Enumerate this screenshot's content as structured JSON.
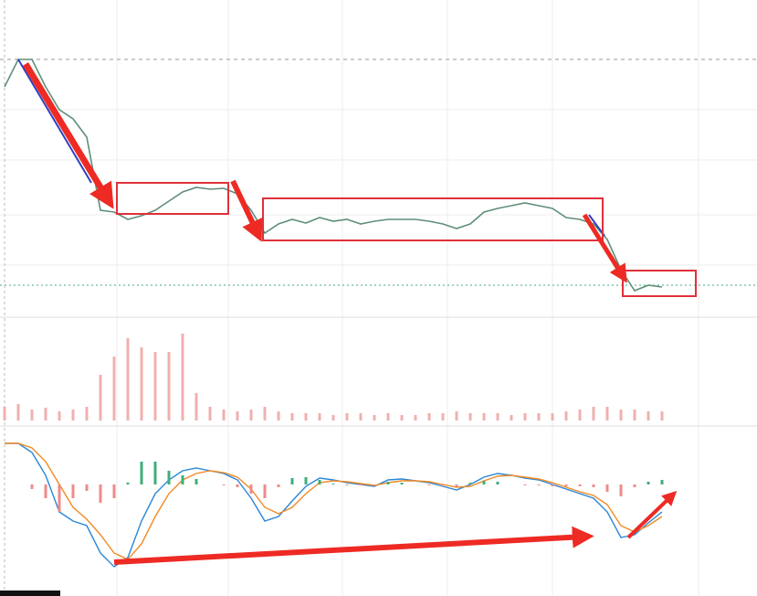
{
  "chart_data": [
    {
      "type": "line",
      "color": "#5f8f78",
      "ylim": [
        0,
        300
      ],
      "categories": [
        null,
        null,
        null,
        null,
        null,
        null,
        null,
        null,
        null,
        null,
        null,
        null,
        null,
        null,
        null,
        null,
        null,
        null,
        null,
        null,
        null,
        null,
        null,
        null,
        null,
        null,
        null,
        null,
        null,
        null,
        null,
        null,
        null,
        null,
        null,
        null,
        null,
        null,
        null,
        null,
        null,
        null,
        null,
        null,
        null,
        null,
        null,
        null,
        null
      ],
      "values": [
        250,
        280,
        280,
        250,
        225,
        215,
        195,
        115,
        113,
        105,
        109,
        115,
        125,
        135,
        140,
        138,
        139,
        133,
        115,
        90,
        100,
        105,
        101,
        107,
        103,
        105,
        100,
        103,
        105,
        105,
        105,
        103,
        100,
        95,
        100,
        113,
        117,
        120,
        123,
        120,
        117,
        107,
        105,
        100,
        83,
        50,
        27,
        33,
        31
      ]
    },
    {
      "type": "bar",
      "color": "#f0b0b0",
      "ylim": [
        0,
        110
      ],
      "categories": [
        null,
        null,
        null,
        null,
        null,
        null,
        null,
        null,
        null,
        null,
        null,
        null,
        null,
        null,
        null,
        null,
        null,
        null,
        null,
        null,
        null,
        null,
        null,
        null,
        null,
        null,
        null,
        null,
        null,
        null,
        null,
        null,
        null,
        null,
        null,
        null,
        null,
        null,
        null,
        null,
        null,
        null,
        null,
        null,
        null,
        null,
        null,
        null,
        null
      ],
      "values": [
        15,
        18,
        12,
        14,
        10,
        12,
        15,
        50,
        70,
        90,
        80,
        75,
        75,
        95,
        30,
        15,
        12,
        10,
        12,
        15,
        10,
        8,
        8,
        8,
        6,
        8,
        8,
        6,
        8,
        6,
        6,
        8,
        8,
        10,
        8,
        8,
        8,
        6,
        8,
        8,
        8,
        10,
        12,
        15,
        15,
        12,
        12,
        10,
        10
      ]
    },
    {
      "type": "line",
      "ylim": [
        -110,
        60
      ],
      "categories": [
        null,
        null,
        null,
        null,
        null,
        null,
        null,
        null,
        null,
        null,
        null,
        null,
        null,
        null,
        null,
        null,
        null,
        null,
        null,
        null,
        null,
        null,
        null,
        null,
        null,
        null,
        null,
        null,
        null,
        null,
        null,
        null,
        null,
        null,
        null,
        null,
        null,
        null,
        null,
        null,
        null,
        null,
        null,
        null,
        null,
        null,
        null,
        null,
        null
      ],
      "series": [
        {
          "color": "#2a86d6",
          "values": [
            45,
            45,
            35,
            10,
            -30,
            -40,
            -45,
            -75,
            -90,
            -80,
            -40,
            -10,
            5,
            15,
            18,
            15,
            12,
            5,
            -15,
            -40,
            -35,
            -18,
            -2,
            7,
            5,
            2,
            0,
            -2,
            5,
            6,
            4,
            2,
            -2,
            -6,
            0,
            8,
            12,
            10,
            7,
            5,
            0,
            -5,
            -10,
            -15,
            -30,
            -58,
            -55,
            -42,
            -30
          ]
        },
        {
          "color": "#f08a24",
          "values": [
            45,
            45,
            40,
            25,
            0,
            -25,
            -38,
            -55,
            -75,
            -82,
            -65,
            -35,
            -10,
            5,
            12,
            15,
            13,
            8,
            -5,
            -25,
            -32,
            -25,
            -10,
            2,
            4,
            3,
            1,
            -1,
            2,
            4,
            4,
            3,
            0,
            -3,
            -2,
            4,
            9,
            10,
            8,
            6,
            2,
            -3,
            -8,
            -12,
            -22,
            -45,
            -52,
            -45,
            -35
          ]
        }
      ]
    },
    {
      "type": "bar",
      "ylim": [
        -110,
        60
      ],
      "up_color": "#3fae7a",
      "down_color": "#f08a8a",
      "categories": [
        null,
        null,
        null,
        null,
        null,
        null,
        null,
        null,
        null,
        null,
        null,
        null,
        null,
        null,
        null,
        null,
        null,
        null,
        null,
        null,
        null,
        null,
        null,
        null,
        null,
        null,
        null,
        null,
        null,
        null,
        null,
        null,
        null,
        null,
        null,
        null,
        null,
        null,
        null,
        null,
        null,
        null,
        null,
        null,
        null,
        null,
        null,
        null,
        null
      ],
      "values": [
        0,
        0,
        -5,
        -15,
        -30,
        -15,
        -7,
        -20,
        -15,
        2,
        25,
        25,
        15,
        10,
        6,
        0,
        -1,
        -3,
        -10,
        -15,
        -3,
        7,
        8,
        5,
        1,
        -1,
        -1,
        -1,
        3,
        2,
        0,
        -1,
        -2,
        -3,
        2,
        4,
        3,
        0,
        -1,
        -1,
        -2,
        -2,
        -2,
        -3,
        -8,
        -13,
        -3,
        3,
        5
      ]
    }
  ]
}
